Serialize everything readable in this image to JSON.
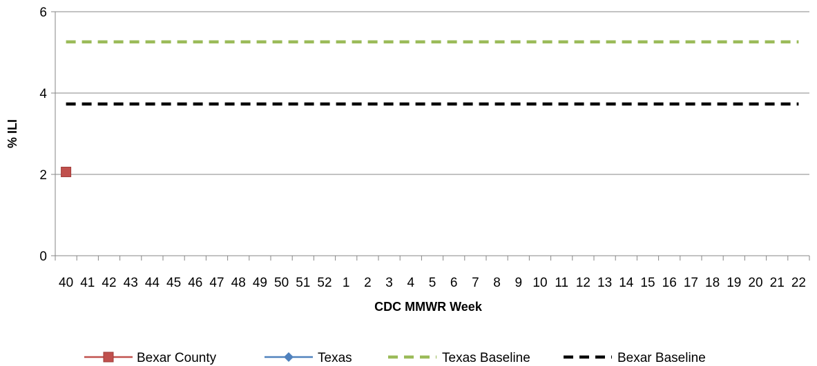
{
  "chart_data": {
    "type": "line",
    "title": "",
    "xlabel": "CDC MMWR Week",
    "ylabel": "% ILI",
    "ylim": [
      0,
      6
    ],
    "yticks": [
      0,
      2,
      4,
      6
    ],
    "grid": "horizontal",
    "legend_position": "bottom",
    "categories": [
      "40",
      "41",
      "42",
      "43",
      "44",
      "45",
      "46",
      "47",
      "48",
      "49",
      "50",
      "51",
      "52",
      "1",
      "2",
      "3",
      "4",
      "5",
      "6",
      "7",
      "8",
      "9",
      "10",
      "11",
      "12",
      "13",
      "14",
      "15",
      "16",
      "17",
      "18",
      "19",
      "20",
      "21",
      "22"
    ],
    "series": [
      {
        "name": "Bexar County",
        "color": "#C0504D",
        "style": "solid",
        "marker": "square",
        "values": [
          2.06,
          null,
          null,
          null,
          null,
          null,
          null,
          null,
          null,
          null,
          null,
          null,
          null,
          null,
          null,
          null,
          null,
          null,
          null,
          null,
          null,
          null,
          null,
          null,
          null,
          null,
          null,
          null,
          null,
          null,
          null,
          null,
          null,
          null,
          null
        ]
      },
      {
        "name": "Texas",
        "color": "#4F81BD",
        "style": "solid",
        "marker": "diamond",
        "values": [
          null,
          null,
          null,
          null,
          null,
          null,
          null,
          null,
          null,
          null,
          null,
          null,
          null,
          null,
          null,
          null,
          null,
          null,
          null,
          null,
          null,
          null,
          null,
          null,
          null,
          null,
          null,
          null,
          null,
          null,
          null,
          null,
          null,
          null,
          null
        ]
      },
      {
        "name": "Texas Baseline",
        "color": "#9BBB59",
        "style": "dashed",
        "marker": "none",
        "values": [
          5.26,
          5.26,
          5.26,
          5.26,
          5.26,
          5.26,
          5.26,
          5.26,
          5.26,
          5.26,
          5.26,
          5.26,
          5.26,
          5.26,
          5.26,
          5.26,
          5.26,
          5.26,
          5.26,
          5.26,
          5.26,
          5.26,
          5.26,
          5.26,
          5.26,
          5.26,
          5.26,
          5.26,
          5.26,
          5.26,
          5.26,
          5.26,
          5.26,
          5.26,
          5.26
        ]
      },
      {
        "name": "Bexar Baseline",
        "color": "#000000",
        "style": "dashed",
        "marker": "none",
        "values": [
          3.73,
          3.73,
          3.73,
          3.73,
          3.73,
          3.73,
          3.73,
          3.73,
          3.73,
          3.73,
          3.73,
          3.73,
          3.73,
          3.73,
          3.73,
          3.73,
          3.73,
          3.73,
          3.73,
          3.73,
          3.73,
          3.73,
          3.73,
          3.73,
          3.73,
          3.73,
          3.73,
          3.73,
          3.73,
          3.73,
          3.73,
          3.73,
          3.73,
          3.73,
          3.73
        ]
      }
    ]
  }
}
